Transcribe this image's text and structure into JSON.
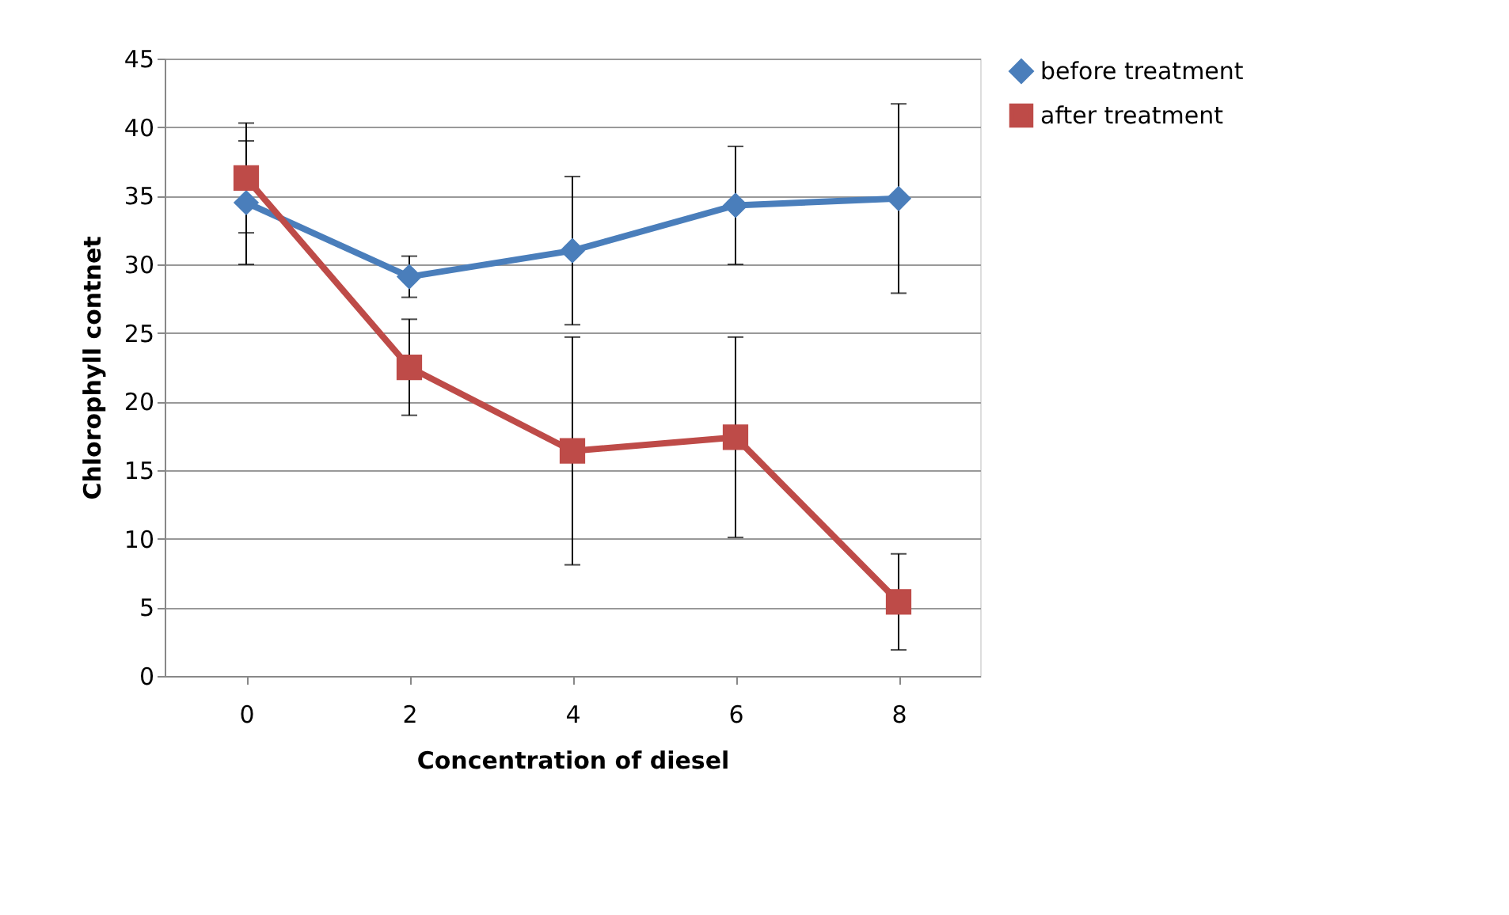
{
  "chart_data": {
    "type": "line",
    "xlabel": "Concentration of diesel",
    "ylabel": "Chlorophyll contnet",
    "categories": [
      "0",
      "2",
      "4",
      "6",
      "8"
    ],
    "series": [
      {
        "name": "before treatment",
        "color": "#4a7ebb",
        "marker": "diamond",
        "values": [
          34.5,
          29.1,
          31.0,
          34.3,
          34.8
        ],
        "errors": [
          4.5,
          1.5,
          5.4,
          4.3,
          6.9
        ]
      },
      {
        "name": "after treatment",
        "color": "#be4b48",
        "marker": "square",
        "values": [
          36.3,
          22.5,
          16.4,
          17.4,
          5.4
        ],
        "errors": [
          4.0,
          3.5,
          8.3,
          7.3,
          3.5
        ]
      }
    ],
    "ylim": [
      0,
      45
    ],
    "yticks": [
      0,
      5,
      10,
      15,
      20,
      25,
      30,
      35,
      40,
      45
    ],
    "grid": "y",
    "legend": "right",
    "line_style": "solid"
  }
}
